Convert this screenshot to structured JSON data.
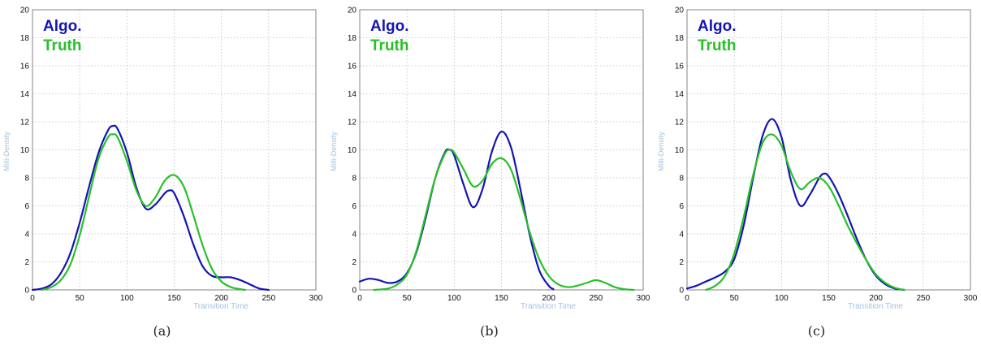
{
  "chart_data": [
    {
      "type": "line",
      "caption": "(a)",
      "xlabel": "Transition Time",
      "ylabel": "Milli-Density",
      "xlim": [
        0,
        300
      ],
      "ylim": [
        0,
        20
      ],
      "xticks": [
        "0",
        "50",
        "100",
        "150",
        "200",
        "250",
        "300"
      ],
      "yticks": [
        "0",
        "2",
        "4",
        "6",
        "8",
        "10",
        "12",
        "14",
        "16",
        "18",
        "20"
      ],
      "grid": true,
      "legend_position": "top-left",
      "series": [
        {
          "name": "Algo.",
          "color": "#1414b4",
          "x": [
            0,
            10,
            20,
            30,
            40,
            50,
            60,
            70,
            80,
            85,
            90,
            100,
            110,
            120,
            130,
            140,
            145,
            150,
            160,
            170,
            180,
            190,
            200,
            210,
            220,
            230,
            240,
            250
          ],
          "y": [
            0.0,
            0.1,
            0.4,
            1.2,
            2.6,
            4.8,
            7.4,
            9.8,
            11.4,
            11.7,
            11.5,
            9.8,
            7.3,
            5.8,
            6.1,
            6.9,
            7.1,
            6.9,
            5.3,
            3.3,
            1.7,
            1.0,
            0.9,
            0.9,
            0.7,
            0.4,
            0.1,
            0.0
          ]
        },
        {
          "name": "Truth",
          "color": "#28c028",
          "x": [
            10,
            20,
            30,
            40,
            50,
            60,
            70,
            80,
            85,
            90,
            100,
            110,
            120,
            130,
            140,
            150,
            160,
            170,
            180,
            190,
            200,
            210,
            220,
            225
          ],
          "y": [
            0.0,
            0.2,
            0.7,
            1.8,
            3.9,
            6.7,
            9.4,
            10.9,
            11.1,
            10.9,
            9.2,
            7.1,
            6.0,
            6.6,
            7.8,
            8.2,
            7.4,
            5.4,
            3.2,
            1.5,
            0.6,
            0.2,
            0.05,
            0.0
          ]
        }
      ]
    },
    {
      "type": "line",
      "caption": "(b)",
      "xlabel": "Transition Time",
      "ylabel": "Milli-Density",
      "xlim": [
        0,
        300
      ],
      "ylim": [
        0,
        20
      ],
      "xticks": [
        "0",
        "50",
        "100",
        "150",
        "200",
        "250",
        "300"
      ],
      "yticks": [
        "0",
        "2",
        "4",
        "6",
        "8",
        "10",
        "12",
        "14",
        "16",
        "18",
        "20"
      ],
      "grid": true,
      "legend_position": "top-left",
      "series": [
        {
          "name": "Algo.",
          "color": "#1414b4",
          "x": [
            0,
            10,
            20,
            30,
            40,
            50,
            60,
            70,
            80,
            90,
            95,
            100,
            110,
            120,
            130,
            140,
            150,
            160,
            170,
            180,
            190,
            200,
            205
          ],
          "y": [
            0.6,
            0.8,
            0.7,
            0.5,
            0.6,
            1.2,
            2.7,
            5.2,
            8.0,
            9.8,
            10.0,
            9.6,
            7.5,
            5.9,
            7.2,
            9.9,
            11.3,
            10.2,
            7.2,
            3.9,
            1.4,
            0.3,
            0.05
          ]
        },
        {
          "name": "Truth",
          "color": "#28c028",
          "x": [
            15,
            30,
            40,
            50,
            60,
            70,
            80,
            90,
            95,
            100,
            110,
            120,
            130,
            140,
            150,
            160,
            170,
            180,
            190,
            200,
            210,
            220,
            230,
            240,
            250,
            260,
            270,
            280,
            290
          ],
          "y": [
            0.0,
            0.1,
            0.4,
            1.1,
            2.8,
            5.4,
            8.0,
            9.7,
            10.0,
            9.8,
            8.6,
            7.4,
            7.8,
            9.0,
            9.4,
            8.6,
            6.5,
            4.1,
            2.2,
            1.0,
            0.4,
            0.2,
            0.3,
            0.5,
            0.7,
            0.5,
            0.2,
            0.05,
            0.0
          ]
        }
      ]
    },
    {
      "type": "line",
      "caption": "(c)",
      "xlabel": "Transition Time",
      "ylabel": "Milli-Density",
      "xlim": [
        0,
        300
      ],
      "ylim": [
        0,
        20
      ],
      "xticks": [
        "0",
        "50",
        "100",
        "150",
        "200",
        "250",
        "300"
      ],
      "yticks": [
        "0",
        "2",
        "4",
        "6",
        "8",
        "10",
        "12",
        "14",
        "16",
        "18",
        "20"
      ],
      "grid": true,
      "legend_position": "top-left",
      "series": [
        {
          "name": "Algo.",
          "color": "#1414b4",
          "x": [
            0,
            10,
            20,
            30,
            40,
            50,
            60,
            70,
            80,
            90,
            100,
            110,
            120,
            130,
            140,
            145,
            150,
            160,
            170,
            180,
            190,
            200,
            210,
            220,
            230
          ],
          "y": [
            0.1,
            0.3,
            0.6,
            0.9,
            1.3,
            2.2,
            4.6,
            8.0,
            11.0,
            12.2,
            10.9,
            7.8,
            6.0,
            6.8,
            8.0,
            8.3,
            8.1,
            6.9,
            5.3,
            3.6,
            2.1,
            1.0,
            0.4,
            0.1,
            0.0
          ]
        },
        {
          "name": "Truth",
          "color": "#28c028",
          "x": [
            20,
            30,
            40,
            50,
            60,
            70,
            80,
            90,
            100,
            110,
            120,
            130,
            140,
            150,
            160,
            170,
            180,
            190,
            200,
            210,
            220,
            230
          ],
          "y": [
            0.0,
            0.3,
            1.0,
            2.6,
            5.2,
            8.2,
            10.5,
            11.1,
            10.3,
            8.4,
            7.2,
            7.7,
            8.0,
            7.4,
            6.1,
            4.6,
            3.3,
            2.1,
            1.1,
            0.5,
            0.15,
            0.0
          ]
        }
      ]
    }
  ]
}
